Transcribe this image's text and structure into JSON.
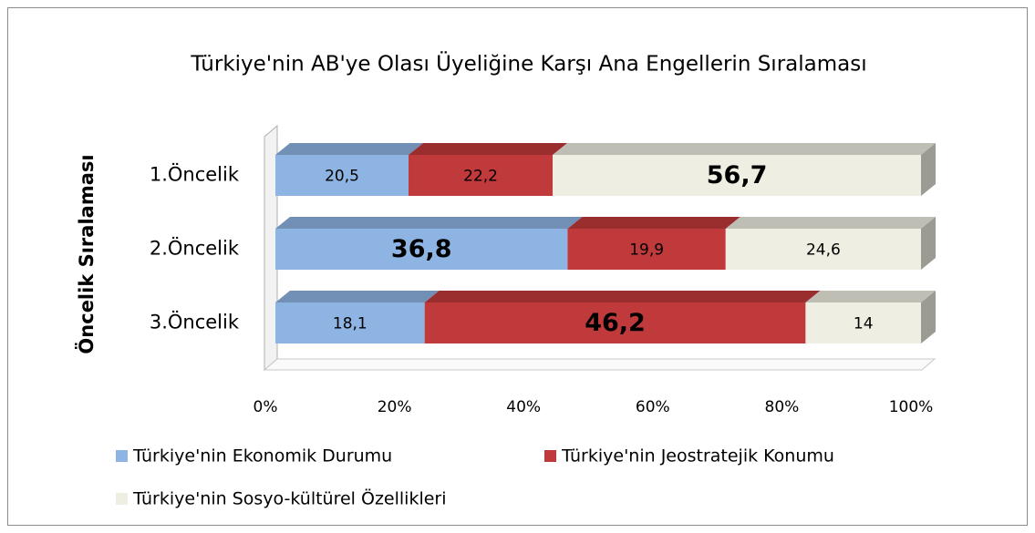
{
  "chart_data": {
    "type": "stacked_barh_percent",
    "title": "Türkiye'nin AB'ye Olası Üyeliğine Karşı Ana Engellerin Sıralaması",
    "y_label": "Öncelik Sıralaması",
    "categories": [
      "1.Öncelik",
      "2.Öncelik",
      "3.Öncelik"
    ],
    "series": [
      {
        "name": "Türkiye'nin Ekonomik Durumu",
        "color": "#8eb4e3",
        "values": [
          20.5,
          36.8,
          18.1
        ],
        "value_labels": [
          "20,5",
          "36,8",
          "18,1"
        ]
      },
      {
        "name": "Türkiye'nin Jeostratejik Konumu",
        "color": "#c0393b",
        "values": [
          22.2,
          19.9,
          46.2
        ],
        "value_labels": [
          "22,2",
          "19,9",
          "46,2"
        ]
      },
      {
        "name": "Türkiye'nin Sosyo-kültürel Özellikleri",
        "color": "#eeeee2",
        "values": [
          56.7,
          24.6,
          14
        ],
        "value_labels": [
          "56,7",
          "24,6",
          "14"
        ]
      }
    ],
    "xlim": [
      0,
      100
    ],
    "xticks": [
      {
        "value": 0,
        "label": "0%"
      },
      {
        "value": 20,
        "label": "20%"
      },
      {
        "value": 40,
        "label": "40%"
      },
      {
        "value": 60,
        "label": "60%"
      },
      {
        "value": 80,
        "label": "80%"
      },
      {
        "value": 100,
        "label": "100%"
      }
    ],
    "legend": "bottom"
  }
}
